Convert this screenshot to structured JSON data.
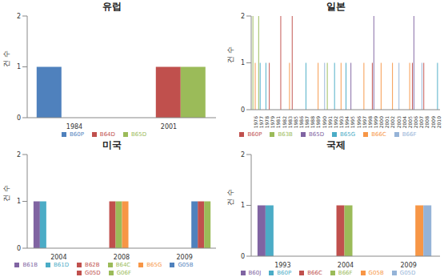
{
  "chart_data": [
    {
      "type": "bar",
      "title": "유럽",
      "ylabel": "건 수",
      "categories": [
        "1984",
        "2001"
      ],
      "series": [
        {
          "name": "B60P",
          "color": "#4f81bd",
          "values": [
            1,
            0
          ]
        },
        {
          "name": "B64D",
          "color": "#c0504d",
          "values": [
            0,
            1
          ]
        },
        {
          "name": "B65D",
          "color": "#9bbb59",
          "values": [
            0,
            1
          ]
        }
      ],
      "ylim": [
        0,
        2
      ],
      "yticks": [
        0,
        1,
        2
      ],
      "grid": false,
      "legend": "bottom"
    },
    {
      "type": "bar",
      "title": "일본",
      "ylabel": "건 수",
      "categories": [
        "1976",
        "1977",
        "1978",
        "1979",
        "1981",
        "1982",
        "1983",
        "1985",
        "1986",
        "1987",
        "1988",
        "1989",
        "1990",
        "1991",
        "1992",
        "1993",
        "1994",
        "1995",
        "1996",
        "1997",
        "1998",
        "1999",
        "2000",
        "2001",
        "2002",
        "2003",
        "2004",
        "2005",
        "2006",
        "2007",
        "2008",
        "2009",
        "2010"
      ],
      "series": [
        {
          "name": "B60P",
          "color": "#c0504d",
          "values": [
            0,
            0,
            0,
            1,
            0,
            2,
            0,
            2,
            0,
            0,
            0,
            0,
            0,
            0,
            0,
            0,
            0,
            0,
            0,
            0,
            0,
            1,
            0,
            0,
            0,
            0,
            0,
            0,
            1,
            0,
            1,
            0,
            0
          ]
        },
        {
          "name": "B63B",
          "color": "#9bbb59",
          "values": [
            2,
            2,
            0,
            0,
            0,
            0,
            0,
            0,
            0,
            0,
            0,
            0,
            0,
            1,
            0,
            0,
            0,
            0,
            0,
            0,
            0,
            0,
            0,
            0,
            0,
            0,
            0,
            0,
            0,
            0,
            0,
            0,
            0
          ]
        },
        {
          "name": "B65D",
          "color": "#8064a2",
          "values": [
            0,
            0,
            0,
            0,
            0,
            0,
            0,
            0,
            0,
            0,
            0,
            0,
            0,
            0,
            0,
            0,
            0,
            1,
            0,
            0,
            0,
            2,
            0,
            0,
            0,
            0,
            0,
            0,
            2,
            0,
            0,
            0,
            0
          ]
        },
        {
          "name": "B65G",
          "color": "#4bacc6",
          "values": [
            0,
            1,
            1,
            0,
            0,
            0,
            0,
            0,
            0,
            1,
            0,
            0,
            0,
            0,
            1,
            0,
            1,
            0,
            0,
            0,
            0,
            0,
            0,
            0,
            0,
            0,
            0,
            0,
            0,
            0,
            0,
            0,
            1
          ]
        },
        {
          "name": "B66C",
          "color": "#f79646",
          "values": [
            1,
            0,
            0,
            0,
            0,
            0,
            1,
            0,
            0,
            0,
            0,
            1,
            0,
            0,
            0,
            1,
            0,
            0,
            0,
            1,
            0,
            0,
            1,
            0,
            1,
            0,
            0,
            1,
            0,
            0,
            0,
            0,
            0
          ]
        },
        {
          "name": "B66F",
          "color": "#95b3d7",
          "values": [
            0,
            0,
            0,
            0,
            0,
            0,
            0,
            0,
            0,
            0,
            0,
            0,
            1,
            0,
            0,
            0,
            0,
            0,
            0,
            0,
            0,
            0,
            0,
            0,
            0,
            1,
            0,
            0,
            0,
            1,
            0,
            0,
            0
          ]
        }
      ],
      "ylim": [
        0,
        2
      ],
      "yticks": [
        0,
        1,
        2
      ],
      "grid": false,
      "legend": "bottom"
    },
    {
      "type": "bar",
      "title": "미국",
      "ylabel": "건 수",
      "categories": [
        "2004",
        "2008",
        "2009"
      ],
      "series": [
        {
          "name": "B61B",
          "color": "#8064a2",
          "values": [
            1,
            0,
            0
          ]
        },
        {
          "name": "B61D",
          "color": "#4bacc6",
          "values": [
            1,
            0,
            0
          ]
        },
        {
          "name": "B62B",
          "color": "#c0504d",
          "values": [
            0,
            1,
            0
          ]
        },
        {
          "name": "B64C",
          "color": "#9bbb59",
          "values": [
            0,
            1,
            0
          ]
        },
        {
          "name": "B65G",
          "color": "#f79646",
          "values": [
            0,
            1,
            0
          ]
        },
        {
          "name": "G05B",
          "color": "#4f81bd",
          "values": [
            0,
            0,
            1
          ]
        },
        {
          "name": "G05D",
          "color": "#c0504d",
          "values": [
            0,
            0,
            1
          ]
        },
        {
          "name": "G06F",
          "color": "#9bbb59",
          "values": [
            0,
            0,
            1
          ]
        }
      ],
      "ylim": [
        0,
        2
      ],
      "yticks": [
        0,
        1,
        2
      ],
      "grid": false,
      "legend": "bottom"
    },
    {
      "type": "bar",
      "title": "국제",
      "ylabel": "건 수",
      "categories": [
        "1993",
        "2004",
        "2009"
      ],
      "series": [
        {
          "name": "B60J",
          "color": "#8064a2",
          "values": [
            1,
            0,
            0
          ]
        },
        {
          "name": "B60P",
          "color": "#4bacc6",
          "values": [
            1,
            0,
            0
          ]
        },
        {
          "name": "B66C",
          "color": "#c0504d",
          "values": [
            0,
            1,
            0
          ]
        },
        {
          "name": "B66F",
          "color": "#9bbb59",
          "values": [
            0,
            1,
            0
          ]
        },
        {
          "name": "G05B",
          "color": "#f79646",
          "values": [
            0,
            0,
            1
          ]
        },
        {
          "name": "G05D",
          "color": "#95b3d7",
          "values": [
            0,
            0,
            1
          ]
        }
      ],
      "ylim": [
        0,
        2
      ],
      "yticks": [
        0,
        1,
        2
      ],
      "grid": false,
      "legend": "bottom"
    }
  ]
}
